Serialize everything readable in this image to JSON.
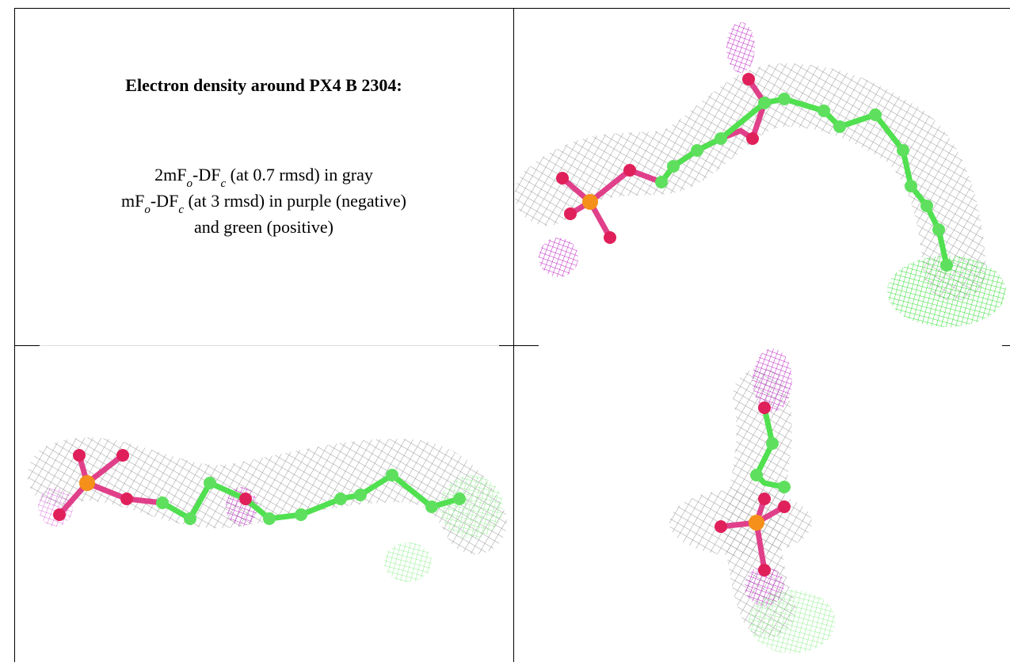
{
  "header": {
    "title": "Electron density around PX4 B 2304:"
  },
  "caption": {
    "lines": [
      [
        "2mF",
        "o",
        "-DF",
        "c",
        " (at 0.7 rmsd) in gray"
      ],
      [
        "mF",
        "o",
        "-DF",
        "c",
        " (at 3 rmsd) in purple (negative)"
      ],
      [
        "and green (positive)"
      ]
    ]
  }
}
